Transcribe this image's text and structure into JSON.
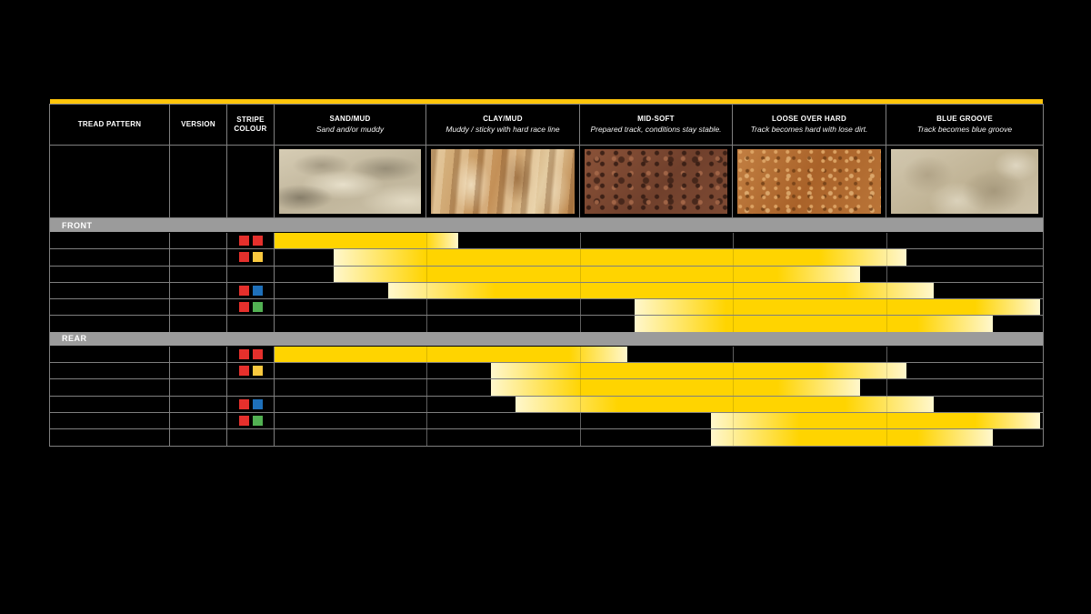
{
  "page": {
    "background": "#000000"
  },
  "top_accent": {
    "color": "#FFC50A"
  },
  "palette": {
    "stripe_red": "#E5302C",
    "stripe_yellow": "#FAC93F",
    "stripe_blue": "#1E70BA",
    "stripe_green": "#52B153",
    "bar_solid": "#FFD400",
    "bar_pale": "#FFF7CC",
    "section_bar": "#9B9B9B",
    "grid_line": "#7F7F7F"
  },
  "table": {
    "header": {
      "columns": [
        {
          "title": "TREAD PATTERN",
          "subtitle": ""
        },
        {
          "title": "VERSION",
          "subtitle": ""
        },
        {
          "title": "STRIPE COLOUR",
          "subtitle": ""
        },
        {
          "title": "SAND/MUD",
          "subtitle": "Sand and/or muddy"
        },
        {
          "title": "CLAY/MUD",
          "subtitle": "Muddy / sticky with hard race line"
        },
        {
          "title": "MID-SOFT",
          "subtitle": "Prepared track, conditions stay stable."
        },
        {
          "title": "LOOSE OVER HARD",
          "subtitle": "Track becomes hard with lose dirt."
        },
        {
          "title": "BLUE GROOVE",
          "subtitle": "Track becomes blue groove"
        }
      ]
    },
    "terrain_images": [
      "sand-dunes-photo",
      "muddy-clay-ruts-photo",
      "mid-soft-dirt-photo",
      "loose-gravel-over-hard-photo",
      "blue-groove-hardpack-photo"
    ]
  },
  "chart_data": {
    "type": "bar",
    "subtype": "horizontal-range-bars-with-faded-ends",
    "title": "",
    "axis_categories": [
      "SAND/MUD",
      "CLAY/MUD",
      "MID-SOFT",
      "LOOSE OVER HARD",
      "BLUE GROOVE"
    ],
    "axis_range": [
      0,
      5
    ],
    "legend_position": "none",
    "grid": true,
    "sections": [
      {
        "label": "FRONT",
        "rows": [
          {
            "stripes": [
              "red",
              "red"
            ],
            "bar": {
              "start": 0.0,
              "solid_from": 0.0,
              "solid_to": 0.99,
              "end": 1.21
            }
          },
          {
            "stripes": [
              "red",
              "yellow"
            ],
            "bar": {
              "start": 0.39,
              "solid_from": 1.0,
              "solid_to": 3.56,
              "end": 4.13
            }
          },
          {
            "stripes": [],
            "bar": {
              "start": 0.39,
              "solid_from": 1.0,
              "solid_to": 3.29,
              "end": 3.83
            }
          },
          {
            "stripes": [
              "red",
              "blue"
            ],
            "bar": {
              "start": 0.75,
              "solid_from": 1.45,
              "solid_to": 3.73,
              "end": 4.3
            }
          },
          {
            "stripes": [
              "red",
              "green"
            ],
            "bar": {
              "start": 2.36,
              "solid_from": 2.96,
              "solid_to": 4.57,
              "end": 4.98
            }
          },
          {
            "stripes": [],
            "bar": {
              "start": 2.36,
              "solid_from": 2.96,
              "solid_to": 4.2,
              "end": 4.68
            }
          }
        ]
      },
      {
        "label": "REAR",
        "rows": [
          {
            "stripes": [
              "red",
              "red"
            ],
            "bar": {
              "start": 0.0,
              "solid_from": 0.0,
              "solid_to": 1.93,
              "end": 2.31
            }
          },
          {
            "stripes": [
              "red",
              "yellow"
            ],
            "bar": {
              "start": 1.42,
              "solid_from": 2.01,
              "solid_to": 3.56,
              "end": 4.13
            }
          },
          {
            "stripes": [],
            "bar": {
              "start": 1.42,
              "solid_from": 2.01,
              "solid_to": 3.29,
              "end": 3.83
            }
          },
          {
            "stripes": [
              "red",
              "blue"
            ],
            "bar": {
              "start": 1.58,
              "solid_from": 2.25,
              "solid_to": 3.73,
              "end": 4.3
            }
          },
          {
            "stripes": [
              "red",
              "green"
            ],
            "bar": {
              "start": 2.86,
              "solid_from": 3.44,
              "solid_to": 4.57,
              "end": 4.98
            }
          },
          {
            "stripes": [],
            "bar": {
              "start": 2.86,
              "solid_from": 3.44,
              "solid_to": 4.2,
              "end": 4.68
            }
          }
        ]
      }
    ]
  }
}
